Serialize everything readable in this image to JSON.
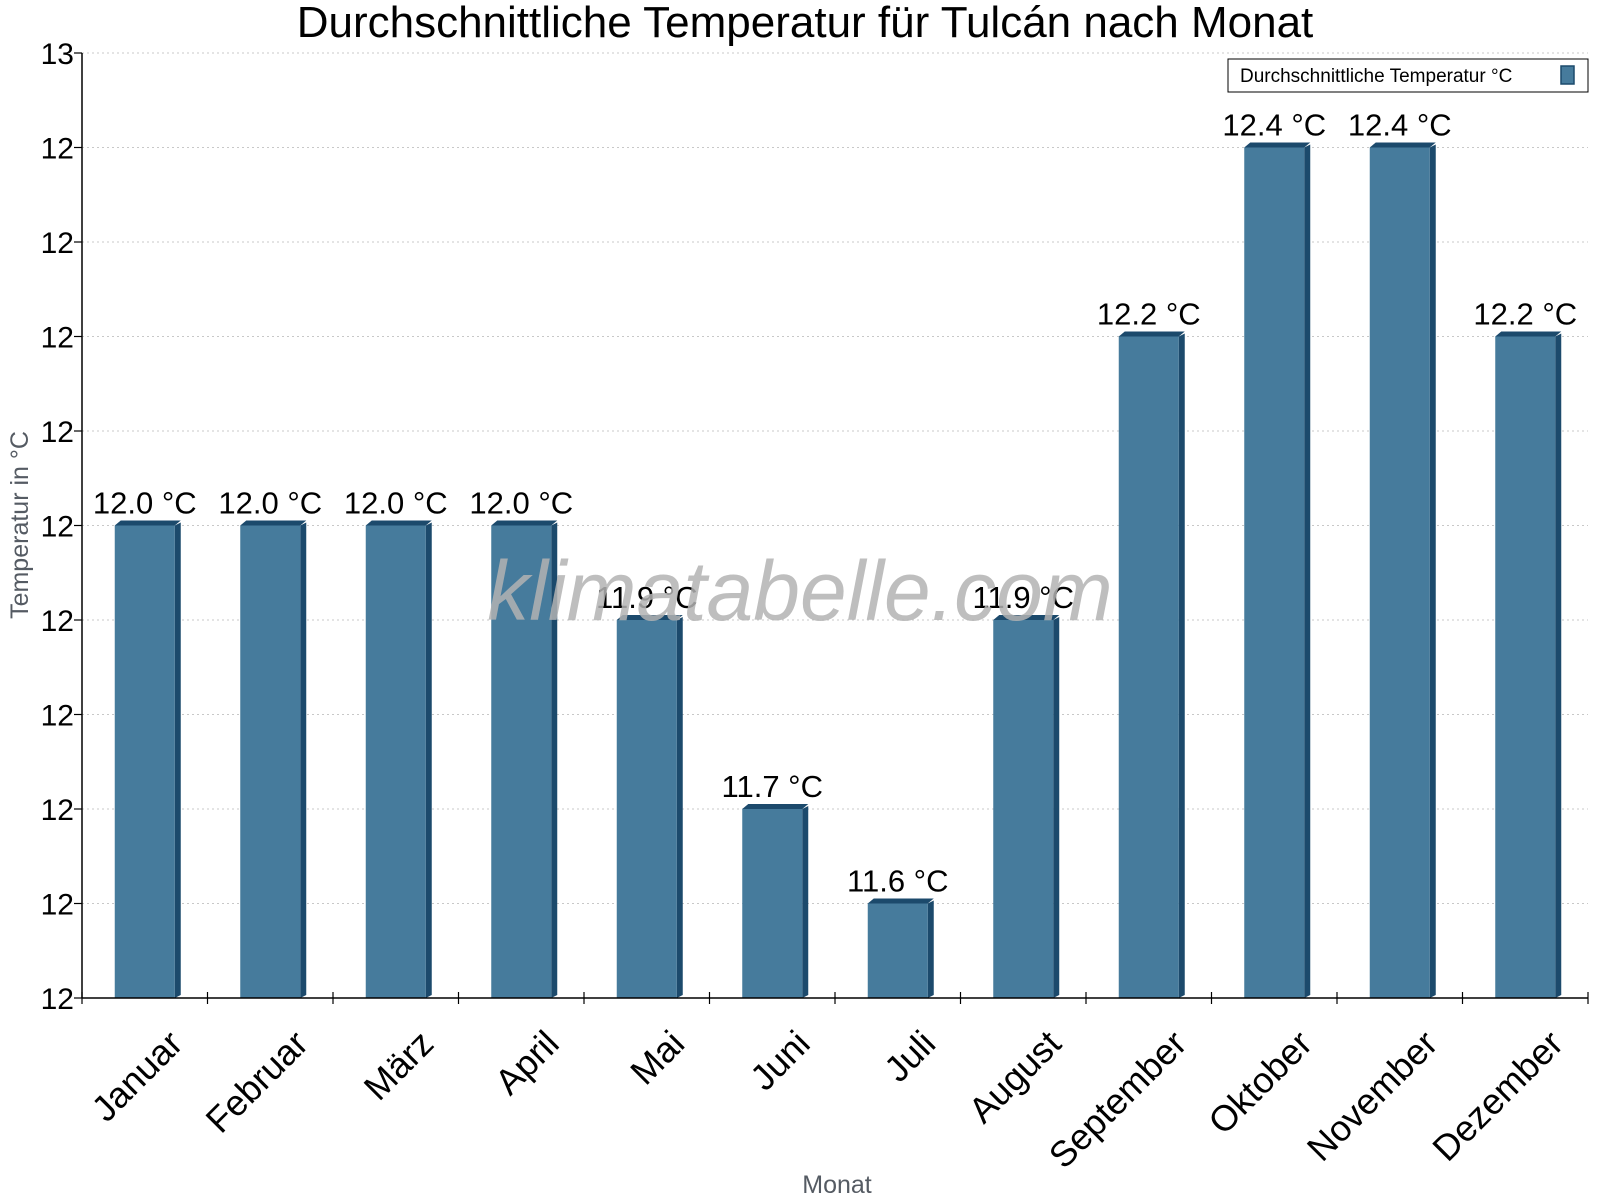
{
  "chart_data": {
    "type": "bar",
    "title": "Durchschnittliche Temperatur für Tulcán nach Monat",
    "xlabel": "Monat",
    "ylabel": "Temperatur in °C",
    "categories": [
      "Januar",
      "Februar",
      "März",
      "April",
      "Mai",
      "Juni",
      "Juli",
      "August",
      "September",
      "Oktober",
      "November",
      "Dezember"
    ],
    "series": [
      {
        "name": "Durchschnittliche Temperatur °C",
        "values": [
          12.0,
          12.0,
          12.0,
          12.0,
          11.9,
          11.7,
          11.6,
          11.9,
          12.2,
          12.4,
          12.4,
          12.2
        ],
        "labels": [
          "12.0 °C",
          "12.0 °C",
          "12.0 °C",
          "12.0 °C",
          "11.9 °C",
          "11.7 °C",
          "11.6 °C",
          "11.9 °C",
          "12.2 °C",
          "12.4 °C",
          "12.4 °C",
          "12.2 °C"
        ]
      }
    ],
    "ylim": [
      11.5,
      12.5
    ],
    "yticks": [
      11.5,
      11.6,
      11.7,
      11.8,
      11.9,
      12.0,
      12.1,
      12.2,
      12.3,
      12.4,
      12.5
    ],
    "ytick_labels": [
      "12",
      "12",
      "12",
      "12",
      "12",
      "12",
      "12",
      "12",
      "12",
      "12",
      "13"
    ],
    "grid": true,
    "legend_position": "top-right"
  },
  "watermark": "klimatabelle.com",
  "colors": {
    "bar_face": "#467b9c",
    "bar_edge": "#1c4a6c",
    "grid": "#c8c8c8",
    "axis": "#000000"
  }
}
